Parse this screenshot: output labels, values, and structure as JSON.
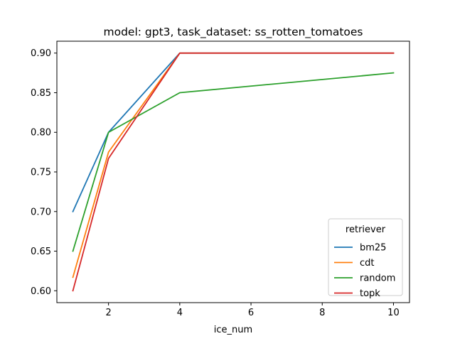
{
  "chart_data": {
    "type": "line",
    "title": "model: gpt3, task_dataset: ss_rotten_tomatoes",
    "xlabel": "ice_num",
    "ylabel": "",
    "x": [
      1,
      2,
      4,
      10
    ],
    "xticks": [
      2,
      4,
      6,
      8,
      10
    ],
    "yticks": [
      0.6,
      0.65,
      0.7,
      0.75,
      0.8,
      0.85,
      0.9
    ],
    "xlim": [
      0.55,
      10.45
    ],
    "ylim": [
      0.585,
      0.915
    ],
    "grid": false,
    "legend": {
      "title": "retriever",
      "position": "lower-right"
    },
    "series": [
      {
        "name": "bm25",
        "color": "#1f77b4",
        "values": [
          0.7,
          0.8,
          0.9,
          0.9
        ]
      },
      {
        "name": "cdt",
        "color": "#ff7f0e",
        "values": [
          0.617,
          0.775,
          0.9,
          0.9
        ]
      },
      {
        "name": "random",
        "color": "#2ca02c",
        "values": [
          0.65,
          0.8,
          0.85,
          0.875
        ]
      },
      {
        "name": "topk",
        "color": "#d62728",
        "values": [
          0.6,
          0.767,
          0.9,
          0.9
        ]
      }
    ]
  }
}
